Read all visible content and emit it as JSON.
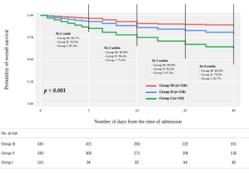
{
  "chart_data": {
    "type": "step",
    "y_label": "Probability of overall survival",
    "x_label": "Number of days from the time of admission",
    "p_value": "p < 0.001",
    "x": [
      0,
      1,
      2,
      3,
      4,
      5,
      6,
      7,
      9,
      11,
      14,
      17,
      21,
      24,
      28
    ],
    "series": [
      {
        "name": "Group III (n=330)",
        "color": "#f0605a",
        "values": [
          1,
          0.995,
          0.99,
          0.985,
          0.98,
          0.975,
          0.97,
          0.967,
          0.95,
          0.93,
          0.908,
          0.903,
          0.898,
          0.893,
          0.89
        ]
      },
      {
        "name": "Group II (n=330)",
        "color": "#5b8ff0",
        "values": [
          1,
          0.99,
          0.975,
          0.965,
          0.955,
          0.945,
          0.936,
          0.93,
          0.91,
          0.885,
          0.864,
          0.845,
          0.829,
          0.81,
          0.799
        ]
      },
      {
        "name": "Group I (n=110)",
        "color": "#22b14c",
        "values": [
          1,
          0.97,
          0.95,
          0.93,
          0.91,
          0.89,
          0.87,
          0.854,
          0.81,
          0.78,
          0.752,
          0.71,
          0.673,
          0.645,
          0.627
        ]
      }
    ],
    "xlim": [
      -0.7,
      29
    ],
    "ylim": [
      -0.03,
      1.03
    ],
    "xticks": [
      0,
      7,
      14,
      21,
      28
    ],
    "yticks": [
      {
        "value": 0,
        "label": "0.00"
      },
      {
        "value": 0.25,
        "label": "0.25"
      },
      {
        "value": 0.5,
        "label": "0.50"
      },
      {
        "value": 0.75,
        "label": "0.75"
      },
      {
        "value": 1,
        "label": "1.00"
      }
    ],
    "grid": true,
    "annotations": [
      {
        "title": "At 1 week",
        "lines": [
          "- Group III: 96.7%",
          "- Group II: 93.0%",
          "- Group I: 85.4%"
        ]
      },
      {
        "title": "At 2 weeks",
        "lines": [
          "- Group III: 90.8%",
          "- Group II: 86.4%",
          "- Group I: 75.2%"
        ]
      },
      {
        "title": "At 3 weeks",
        "lines": [
          "- Group III: 89.8%",
          "- Group II: 82.9%",
          "- Group I: 67.3%"
        ]
      },
      {
        "title": "At 4 weeks",
        "lines": [
          "- Group III: 89.0%",
          "- Group II: 79.9%",
          "- Group I: 62.7%"
        ]
      }
    ],
    "risk_table": {
      "title": "No. at risk",
      "rows": [
        {
          "name": "Group III",
          "values": [
            330,
            321,
            283,
            222,
            151
          ]
        },
        {
          "name": "Group II",
          "values": [
            330,
            306,
            271,
            206,
            136
          ]
        },
        {
          "name": "Group I",
          "values": [
            110,
            96,
            82,
            64,
            38
          ]
        }
      ]
    }
  }
}
